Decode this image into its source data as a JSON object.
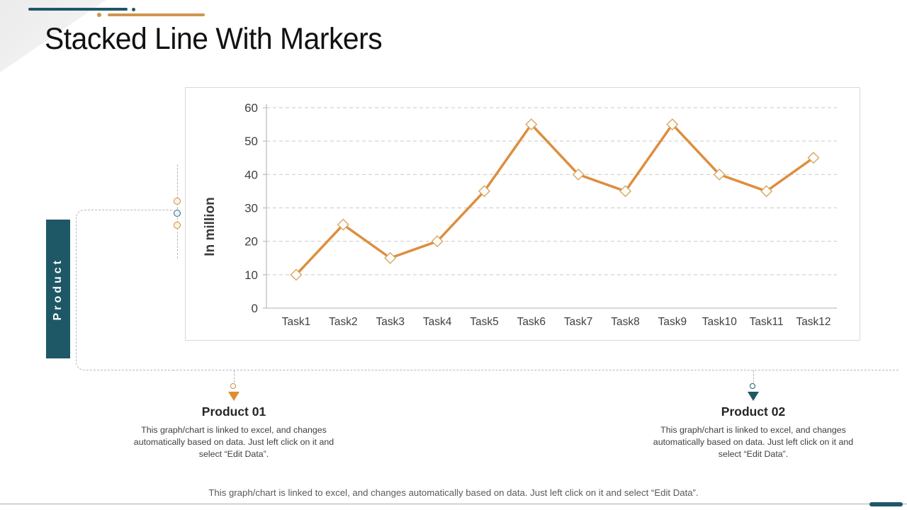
{
  "slide": {
    "title": "Stacked Line With Markers",
    "side_label": "Product",
    "footer": "This graph/chart is linked to excel, and changes automatically based on data. Just left click on it and select “Edit Data”."
  },
  "products": [
    {
      "name": "Product 01",
      "description": "This graph/chart is linked to excel, and changes automatically based on data. Just left click on it and select “Edit Data”.",
      "accent_color": "#DE8D33"
    },
    {
      "name": "Product 02",
      "description": "This graph/chart is linked to excel, and changes automatically based on data. Just left click on it and select “Edit Data”.",
      "accent_color": "#1E5866"
    }
  ],
  "colors": {
    "teal": "#1E5866",
    "orange": "#D0954F",
    "grid": "#C9C9C9",
    "axis": "#BFBFBF",
    "tick_text": "#404040",
    "axis_title_text": "#3A3A3A"
  },
  "chart_data": {
    "type": "line",
    "title": "",
    "categories": [
      "Task1",
      "Task2",
      "Task3",
      "Task4",
      "Task5",
      "Task6",
      "Task7",
      "Task8",
      "Task9",
      "Task10",
      "Task11",
      "Task12"
    ],
    "series": [
      {
        "name": "Product",
        "values": [
          10,
          25,
          15,
          20,
          35,
          55,
          40,
          35,
          55,
          40,
          35,
          45
        ]
      }
    ],
    "xlabel": "",
    "ylabel": "In million",
    "ylim": [
      0,
      60
    ],
    "ytick_step": 10,
    "grid": "horizontal-dashed",
    "legend": "none",
    "marker": "diamond",
    "line_color": "#DD8E3E",
    "marker_fill": "#FFFEFA",
    "marker_stroke": "#D8A766"
  }
}
